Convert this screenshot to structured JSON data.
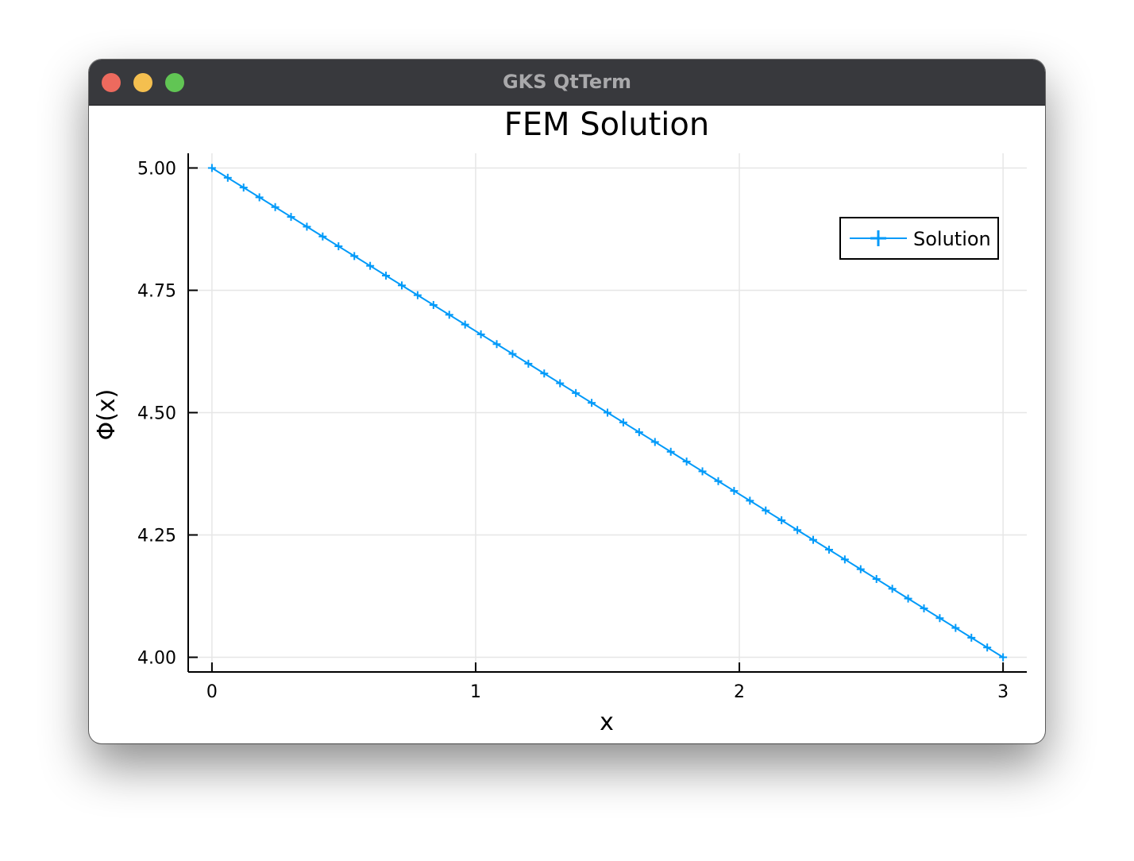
{
  "window": {
    "title": "GKS QtTerm"
  },
  "colors": {
    "series": "#009af9",
    "grid": "#e6e6e6",
    "titlebar": "#38393d"
  },
  "chart_data": {
    "type": "line",
    "title": "FEM Solution",
    "xlabel": "x",
    "ylabel": "Φ(x)",
    "xlim": [
      -0.09,
      3.09
    ],
    "ylim": [
      3.97,
      5.03
    ],
    "xticks": [
      0,
      1,
      2,
      3
    ],
    "xtick_labels": [
      "0",
      "1",
      "2",
      "3"
    ],
    "yticks": [
      4.0,
      4.25,
      4.5,
      4.75,
      5.0
    ],
    "ytick_labels": [
      "4.00",
      "4.25",
      "4.50",
      "4.75",
      "5.00"
    ],
    "grid": true,
    "legend": "top-right",
    "marker": "cross",
    "series": [
      {
        "name": "Solution",
        "color": "#009af9",
        "x": [
          0.0,
          0.06,
          0.12,
          0.18,
          0.24,
          0.3,
          0.36,
          0.42,
          0.48,
          0.54,
          0.6,
          0.66,
          0.72,
          0.78,
          0.84,
          0.9,
          0.96,
          1.02,
          1.08,
          1.14,
          1.2,
          1.26,
          1.32,
          1.38,
          1.44,
          1.5,
          1.56,
          1.62,
          1.68,
          1.74,
          1.8,
          1.86,
          1.92,
          1.98,
          2.04,
          2.1,
          2.16,
          2.22,
          2.28,
          2.34,
          2.4,
          2.46,
          2.52,
          2.58,
          2.64,
          2.7,
          2.76,
          2.82,
          2.88,
          2.94,
          3.0
        ],
        "y": [
          5.0,
          4.98,
          4.96,
          4.94,
          4.92,
          4.9,
          4.88,
          4.86,
          4.84,
          4.82,
          4.8,
          4.78,
          4.76,
          4.74,
          4.72,
          4.7,
          4.68,
          4.66,
          4.64,
          4.62,
          4.6,
          4.58,
          4.56,
          4.54,
          4.52,
          4.5,
          4.48,
          4.46,
          4.44,
          4.42,
          4.4,
          4.38,
          4.36,
          4.34,
          4.32,
          4.3,
          4.28,
          4.26,
          4.24,
          4.22,
          4.2,
          4.18,
          4.16,
          4.14,
          4.12,
          4.1,
          4.08,
          4.06,
          4.04,
          4.02,
          4.0
        ]
      }
    ]
  }
}
